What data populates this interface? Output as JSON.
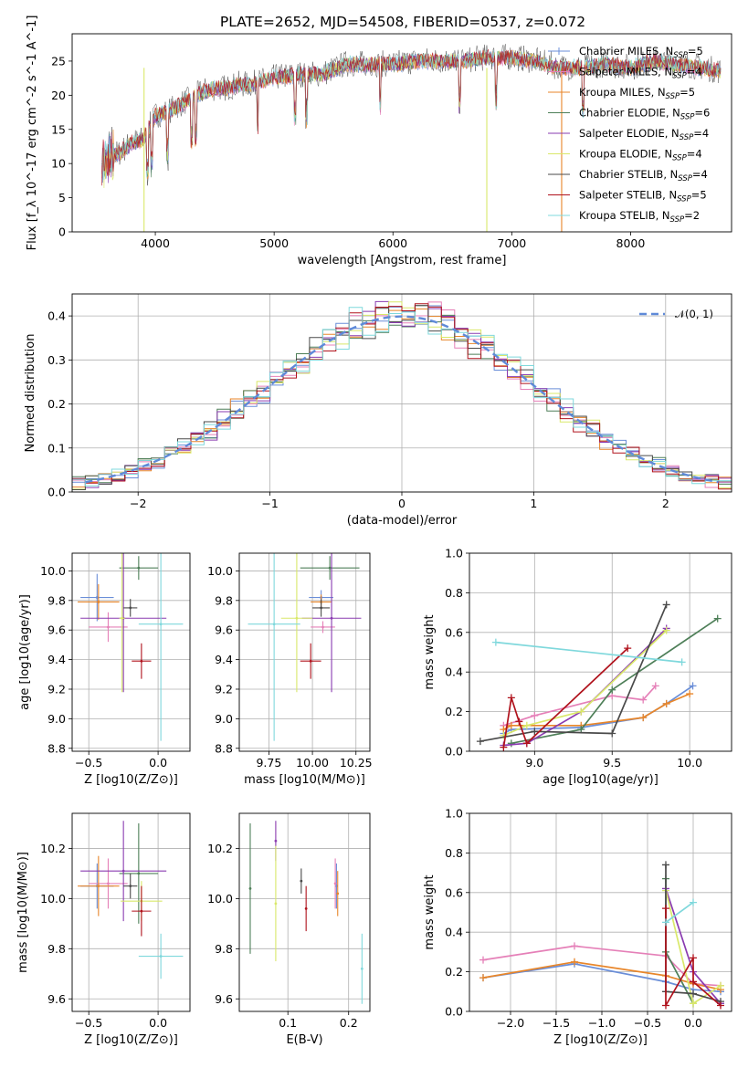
{
  "figure": {
    "title": "PLATE=2652, MJD=54508, FIBERID=0537, z=0.072"
  },
  "models": [
    {
      "name": "Chabrier MILES",
      "nssp": "5",
      "color": "#6a8ed8"
    },
    {
      "name": "Salpeter MILES",
      "nssp": "4",
      "color": "#e580b8"
    },
    {
      "name": "Kroupa MILES",
      "nssp": "5",
      "color": "#e8862a"
    },
    {
      "name": "Chabrier ELODIE",
      "nssp": "6",
      "color": "#4e7f58"
    },
    {
      "name": "Salpeter ELODIE",
      "nssp": "4",
      "color": "#8a3bb0"
    },
    {
      "name": "Kroupa ELODIE",
      "nssp": "4",
      "color": "#d9e86a"
    },
    {
      "name": "Chabrier STELIB",
      "nssp": "4",
      "color": "#4a4a4a"
    },
    {
      "name": "Salpeter STELIB",
      "nssp": "5",
      "color": "#b0121c"
    },
    {
      "name": "Kroupa STELIB",
      "nssp": "2",
      "color": "#7fd8dc"
    }
  ],
  "chart_data": [
    {
      "id": "spectrum",
      "type": "line",
      "xlabel": "wavelength [Angstrom, rest frame]",
      "ylabel": "Flux [f_λ 10^-17 erg cm^-2 s^-1 A^-1]",
      "xlim": [
        3300,
        8850
      ],
      "ylim": [
        0,
        29
      ],
      "xticks": [
        "4000",
        "5000",
        "6000",
        "7000",
        "8000"
      ],
      "yticks": [
        "0",
        "5",
        "10",
        "15",
        "20",
        "25"
      ],
      "legend_position": "top-right",
      "x": [
        3550,
        3600,
        3700,
        3800,
        3900,
        4000,
        4100,
        4200,
        4300,
        4400,
        4500,
        4600,
        4700,
        4800,
        4900,
        5000,
        5200,
        5400,
        5600,
        5800,
        6000,
        6200,
        6400,
        6600,
        6800,
        7000,
        7200,
        7400,
        7600,
        7800,
        8000,
        8200,
        8400,
        8600,
        8750
      ],
      "y": [
        9.5,
        11.0,
        11.5,
        13.0,
        13.5,
        17.0,
        17.5,
        18.5,
        19.5,
        20.5,
        21.0,
        21.0,
        21.5,
        21.5,
        22.0,
        22.5,
        23.0,
        23.0,
        24.5,
        24.5,
        24.5,
        25.0,
        25.0,
        25.0,
        25.5,
        25.5,
        25.0,
        24.0,
        24.0,
        24.5,
        24.0,
        25.0,
        24.5,
        24.0,
        23.5
      ]
    },
    {
      "id": "residuals",
      "type": "histogram",
      "xlabel": "(data-model)/error",
      "ylabel": "Normed distribution",
      "xlim": [
        -2.5,
        2.5
      ],
      "ylim": [
        0,
        0.45
      ],
      "xticks": [
        "−2",
        "−1",
        "0",
        "1",
        "2"
      ],
      "yticks": [
        "0.0",
        "0.1",
        "0.2",
        "0.3",
        "0.4"
      ],
      "bin_edges_start": -2.5,
      "bin_width": 0.1,
      "reference_curve": "𝒩(0, 1)",
      "legend_position": "top-right"
    },
    {
      "id": "age-vs-Z",
      "type": "errorbar",
      "xlabel": "Z [log10(Z/Z⊙)]",
      "ylabel": "age  [log10(age/yr)]",
      "xlim": [
        -0.62,
        0.23
      ],
      "ylim": [
        8.78,
        10.12
      ],
      "xticks": [
        "−0.5",
        "0.0"
      ],
      "yticks": [
        "8.8",
        "9.0",
        "9.2",
        "9.4",
        "9.6",
        "9.8",
        "10.0"
      ],
      "points": [
        {
          "x": -0.44,
          "xerr": 0.12,
          "y": 9.82,
          "yerr": 0.16
        },
        {
          "x": -0.36,
          "xerr": 0.14,
          "y": 9.62,
          "yerr": 0.1
        },
        {
          "x": -0.43,
          "xerr": 0.15,
          "y": 9.79,
          "yerr": 0.12
        },
        {
          "x": -0.14,
          "xerr": 0.14,
          "y": 10.02,
          "yerr": 0.08
        },
        {
          "x": -0.25,
          "xerr": 0.31,
          "y": 9.68,
          "yerr": 0.5
        },
        {
          "x": -0.26,
          "xerr": 0.02,
          "y": 9.68,
          "yerr": 0.5
        },
        {
          "x": -0.2,
          "xerr": 0.05,
          "y": 9.75,
          "yerr": 0.06
        },
        {
          "x": -0.12,
          "xerr": 0.07,
          "y": 9.39,
          "yerr": 0.12
        },
        {
          "x": 0.02,
          "xerr": 0.16,
          "y": 9.64,
          "yerr": 0.79
        }
      ]
    },
    {
      "id": "age-vs-mass",
      "type": "errorbar",
      "xlabel": "mass [log10(M/M⊙)]",
      "ylabel": "",
      "xlim": [
        9.58,
        10.33
      ],
      "ylim": [
        8.78,
        10.12
      ],
      "xticks": [
        "9.75",
        "10.00",
        "10.25"
      ],
      "yticks": [
        "8.8",
        "9.0",
        "9.2",
        "9.4",
        "9.6",
        "9.8",
        "10.0"
      ],
      "points": [
        {
          "x": 10.05,
          "xerr": 0.07,
          "y": 9.82,
          "yerr": 0.05
        },
        {
          "x": 10.06,
          "xerr": 0.07,
          "y": 9.62,
          "yerr": 0.04
        },
        {
          "x": 10.05,
          "xerr": 0.06,
          "y": 9.79,
          "yerr": 0.05
        },
        {
          "x": 10.1,
          "xerr": 0.17,
          "y": 10.02,
          "yerr": 0.08
        },
        {
          "x": 10.11,
          "xerr": 0.17,
          "y": 9.68,
          "yerr": 0.5
        },
        {
          "x": 9.91,
          "xerr": 0.09,
          "y": 9.68,
          "yerr": 0.5
        },
        {
          "x": 10.05,
          "xerr": 0.05,
          "y": 9.75,
          "yerr": 0.06
        },
        {
          "x": 9.99,
          "xerr": 0.06,
          "y": 9.39,
          "yerr": 0.12
        },
        {
          "x": 9.78,
          "xerr": 0.15,
          "y": 9.64,
          "yerr": 0.79
        }
      ]
    },
    {
      "id": "mass-weight-vs-age",
      "type": "line",
      "xlabel": "age  [log10(age/yr)]",
      "ylabel": "mass weight",
      "xlim": [
        8.58,
        10.27
      ],
      "ylim": [
        0,
        1.0
      ],
      "xticks": [
        "9.0",
        "9.5",
        "10.0"
      ],
      "yticks": [
        "0.0",
        "0.2",
        "0.4",
        "0.6",
        "0.8",
        "1.0"
      ],
      "series": [
        {
          "name": "Chabrier MILES",
          "x": [
            8.8,
            8.85,
            9.3,
            9.7,
            9.85,
            10.02
          ],
          "y": [
            0.09,
            0.11,
            0.12,
            0.17,
            0.24,
            0.33
          ]
        },
        {
          "name": "Salpeter MILES",
          "x": [
            8.8,
            9.0,
            9.5,
            9.7,
            9.78
          ],
          "y": [
            0.13,
            0.18,
            0.28,
            0.26,
            0.33
          ]
        },
        {
          "name": "Kroupa MILES",
          "x": [
            8.8,
            8.85,
            9.3,
            9.7,
            9.85,
            10.0
          ],
          "y": [
            0.11,
            0.13,
            0.13,
            0.17,
            0.24,
            0.29
          ]
        },
        {
          "name": "Chabrier ELODIE",
          "x": [
            8.85,
            9.3,
            9.5,
            10.18
          ],
          "y": [
            0.04,
            0.11,
            0.31,
            0.67
          ]
        },
        {
          "name": "Salpeter ELODIE",
          "x": [
            8.8,
            8.95,
            9.3,
            9.85
          ],
          "y": [
            0.03,
            0.04,
            0.2,
            0.62
          ]
        },
        {
          "name": "Kroupa ELODIE",
          "x": [
            8.8,
            8.95,
            9.3,
            9.85
          ],
          "y": [
            0.08,
            0.13,
            0.2,
            0.61
          ]
        },
        {
          "name": "Chabrier STELIB",
          "x": [
            8.65,
            9.0,
            9.5,
            9.85
          ],
          "y": [
            0.05,
            0.1,
            0.09,
            0.74
          ]
        },
        {
          "name": "Salpeter STELIB",
          "x": [
            8.8,
            8.85,
            8.9,
            8.95,
            9.6
          ],
          "y": [
            0.02,
            0.27,
            0.15,
            0.04,
            0.52
          ]
        },
        {
          "name": "Kroupa STELIB",
          "x": [
            8.75,
            9.95
          ],
          "y": [
            0.55,
            0.45
          ]
        }
      ]
    },
    {
      "id": "mass-vs-Z",
      "type": "errorbar",
      "xlabel": "Z [log10(Z/Z⊙)]",
      "ylabel": "mass [log10(M/M⊙)]",
      "xlim": [
        -0.62,
        0.23
      ],
      "ylim": [
        9.55,
        10.34
      ],
      "xticks": [
        "−0.5",
        "0.0"
      ],
      "yticks": [
        "9.6",
        "9.8",
        "10.0",
        "10.2"
      ],
      "points": [
        {
          "x": -0.44,
          "xerr": 0.12,
          "y": 10.05,
          "yerr": 0.09
        },
        {
          "x": -0.36,
          "xerr": 0.14,
          "y": 10.06,
          "yerr": 0.1
        },
        {
          "x": -0.43,
          "xerr": 0.15,
          "y": 10.05,
          "yerr": 0.12
        },
        {
          "x": -0.14,
          "xerr": 0.14,
          "y": 10.1,
          "yerr": 0.2
        },
        {
          "x": -0.25,
          "xerr": 0.31,
          "y": 10.11,
          "yerr": 0.2
        },
        {
          "x": -0.12,
          "xerr": 0.15,
          "y": 9.99,
          "yerr": 0.08
        },
        {
          "x": -0.2,
          "xerr": 0.05,
          "y": 10.05,
          "yerr": 0.05
        },
        {
          "x": -0.12,
          "xerr": 0.07,
          "y": 9.95,
          "yerr": 0.1
        },
        {
          "x": 0.02,
          "xerr": 0.16,
          "y": 9.77,
          "yerr": 0.09
        }
      ]
    },
    {
      "id": "mass-vs-EBV",
      "type": "errorbar",
      "xlabel": "E(B-V)",
      "ylabel": "",
      "xlim": [
        0.02,
        0.235
      ],
      "ylim": [
        9.55,
        10.34
      ],
      "xticks": [
        "0.1",
        "0.2"
      ],
      "yticks": [
        "9.6",
        "9.8",
        "10.0",
        "10.2"
      ],
      "points": [
        {
          "x": 0.18,
          "y": 10.05,
          "yerr": 0.09
        },
        {
          "x": 0.178,
          "y": 10.06,
          "yerr": 0.1
        },
        {
          "x": 0.182,
          "y": 10.02,
          "yerr": 0.09
        },
        {
          "x": 0.038,
          "y": 10.04,
          "yerr": 0.26
        },
        {
          "x": 0.08,
          "y": 10.23,
          "yerr": 0.08
        },
        {
          "x": 0.08,
          "y": 9.98,
          "yerr": 0.23
        },
        {
          "x": 0.122,
          "y": 10.07,
          "yerr": 0.05
        },
        {
          "x": 0.13,
          "y": 9.96,
          "yerr": 0.09
        },
        {
          "x": 0.222,
          "y": 9.72,
          "yerr": 0.14
        }
      ]
    },
    {
      "id": "mass-weight-vs-Z",
      "type": "line",
      "xlabel": "Z [log10(Z/Z⊙)]",
      "ylabel": "mass weight",
      "xlim": [
        -2.45,
        0.42
      ],
      "ylim": [
        0,
        1.0
      ],
      "xticks": [
        "−2.0",
        "−1.5",
        "−1.0",
        "−0.5",
        "0.0"
      ],
      "yticks": [
        "0.0",
        "0.2",
        "0.4",
        "0.6",
        "0.8",
        "1.0"
      ],
      "series": [
        {
          "name": "Chabrier MILES",
          "x": [
            -2.3,
            -1.3,
            -0.3,
            0.0,
            0.3
          ],
          "y": [
            0.17,
            0.24,
            0.15,
            0.11,
            0.1
          ]
        },
        {
          "name": "Salpeter MILES",
          "x": [
            -2.3,
            -1.3,
            -0.3,
            0.0,
            0.3
          ],
          "y": [
            0.26,
            0.33,
            0.28,
            0.14,
            0.13
          ]
        },
        {
          "name": "Kroupa MILES",
          "x": [
            -2.3,
            -1.3,
            -0.3,
            0.0,
            0.3
          ],
          "y": [
            0.17,
            0.25,
            0.18,
            0.14,
            0.11
          ]
        },
        {
          "name": "Chabrier ELODIE",
          "x": [
            -0.3,
            -0.3,
            0.0
          ],
          "y": [
            0.67,
            0.3,
            0.04
          ]
        },
        {
          "name": "Salpeter ELODIE",
          "x": [
            -0.3,
            0.0,
            0.3
          ],
          "y": [
            0.62,
            0.2,
            0.04
          ]
        },
        {
          "name": "Kroupa ELODIE",
          "x": [
            -0.3,
            0.0,
            0.3
          ],
          "y": [
            0.61,
            0.04,
            0.13
          ]
        },
        {
          "name": "Chabrier STELIB",
          "x": [
            -0.3,
            -0.3,
            0.0,
            0.3
          ],
          "y": [
            0.74,
            0.1,
            0.09,
            0.05
          ]
        },
        {
          "name": "Salpeter STELIB",
          "x": [
            -0.3,
            -0.3,
            0.0,
            0.0,
            0.3
          ],
          "y": [
            0.52,
            0.03,
            0.27,
            0.15,
            0.03
          ]
        },
        {
          "name": "Kroupa STELIB",
          "x": [
            -0.3,
            0.0
          ],
          "y": [
            0.45,
            0.55
          ]
        }
      ]
    }
  ]
}
